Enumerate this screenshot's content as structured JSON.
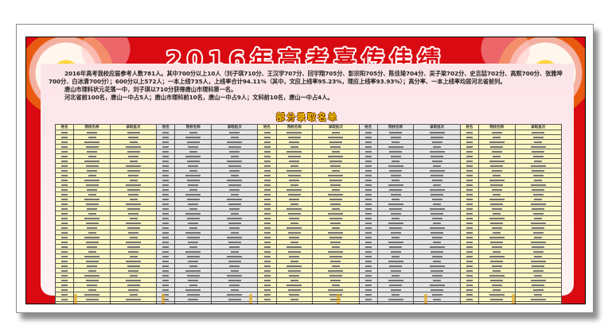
{
  "title": "2016年高考喜传佳绩",
  "intro": [
    "2016年高考我校应届参考人数781人。其中700分以上10人（刘子琪710分、王汉学707分、回宇翔705分、彭宗阳705分、陈佳琦704分、吴子梁702分、史吉喆702分、高熙700分、张雅坤700分、白冰清700分）；600分以上572人；一本上线735人，上线率合计94.11%（其中，文应上线率95.23%，理应上线率93.93%）；高分率、一本上线率均居河北省前列。",
    "唐山市理科状元花落一中，刘子琪以710分获得唐山市理科第一名。",
    "河北省前100名，唐山一中占5人；唐山市理科前10名，唐山一中占9人；文科前10名，唐山一中占4人。"
  ],
  "list_title": "部分录取名单",
  "table": {
    "headers": [
      "姓名",
      "院校名称",
      "录取批次"
    ],
    "groups": 5,
    "rows": 40
  },
  "colors": {
    "banner_red": "#d90a12",
    "panel_pink": "#fbe4e8",
    "column_yellow": "#fdf7c4",
    "column_gray": "#e6e6e6",
    "subtitle_gold": "#f5c400"
  }
}
